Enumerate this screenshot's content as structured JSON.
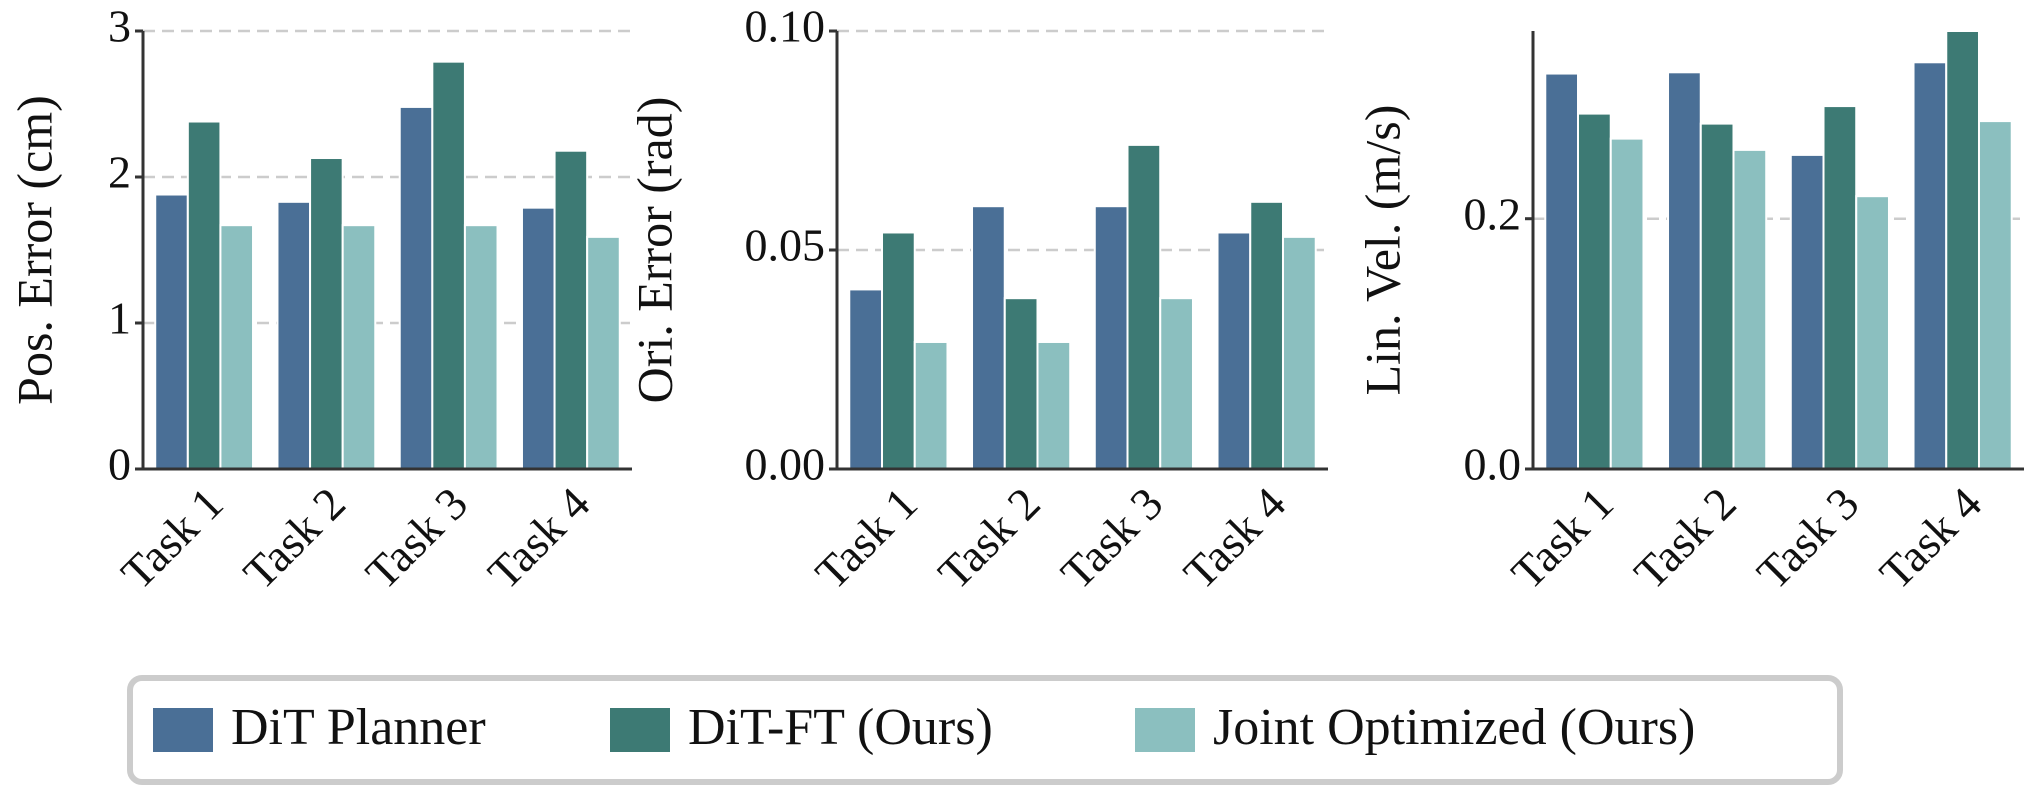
{
  "chart_data": [
    {
      "type": "bar",
      "ylabel": "Pos. Error (cm)",
      "categories": [
        "Task 1",
        "Task 2",
        "Task 3",
        "Task 4"
      ],
      "series": [
        {
          "name": "DiT Planner",
          "color": "#4a6f96",
          "values": [
            1.88,
            1.83,
            2.48,
            1.79
          ]
        },
        {
          "name": "DiT-FT (Ours)",
          "color": "#3d7a74",
          "values": [
            2.38,
            2.13,
            2.79,
            2.18
          ]
        },
        {
          "name": "Joint Optimized (Ours)",
          "color": "#8bbfbf",
          "values": [
            1.67,
            1.67,
            1.67,
            1.59
          ]
        }
      ],
      "ylim": [
        0,
        3
      ],
      "yticks": [
        0,
        1,
        2,
        3
      ],
      "grid": true
    },
    {
      "type": "bar",
      "ylabel": "Ori. Error (rad)",
      "categories": [
        "Task 1",
        "Task 2",
        "Task 3",
        "Task 4"
      ],
      "series": [
        {
          "color": "#4a6f96",
          "values": [
            0.041,
            0.06,
            0.06,
            0.054
          ]
        },
        {
          "color": "#3d7a74",
          "values": [
            0.054,
            0.039,
            0.074,
            0.061
          ]
        },
        {
          "color": "#8bbfbf",
          "values": [
            0.029,
            0.029,
            0.039,
            0.053
          ]
        }
      ],
      "ylim": [
        0,
        0.1
      ],
      "yticks": [
        {
          "value": 0,
          "label": "0.00"
        },
        {
          "value": 0.05,
          "label": "0.05"
        },
        {
          "value": 0.1,
          "label": "0.10"
        }
      ],
      "grid": true
    },
    {
      "type": "bar",
      "ylabel": "Lin. Vel. (m/s)",
      "categories": [
        "Task 1",
        "Task 2",
        "Task 3",
        "Task 4"
      ],
      "series": [
        {
          "color": "#4a6f96",
          "values": [
            0.316,
            0.317,
            0.251,
            0.325
          ]
        },
        {
          "color": "#3d7a74",
          "values": [
            0.284,
            0.276,
            0.29,
            0.35
          ]
        },
        {
          "color": "#8bbfbf",
          "values": [
            0.264,
            0.255,
            0.218,
            0.278
          ]
        }
      ],
      "ylim": [
        0,
        0.35
      ],
      "yticks": [
        {
          "value": 0,
          "label": "0.0"
        },
        {
          "value": 0.2,
          "label": "0.2"
        }
      ],
      "grid": true
    }
  ]
}
